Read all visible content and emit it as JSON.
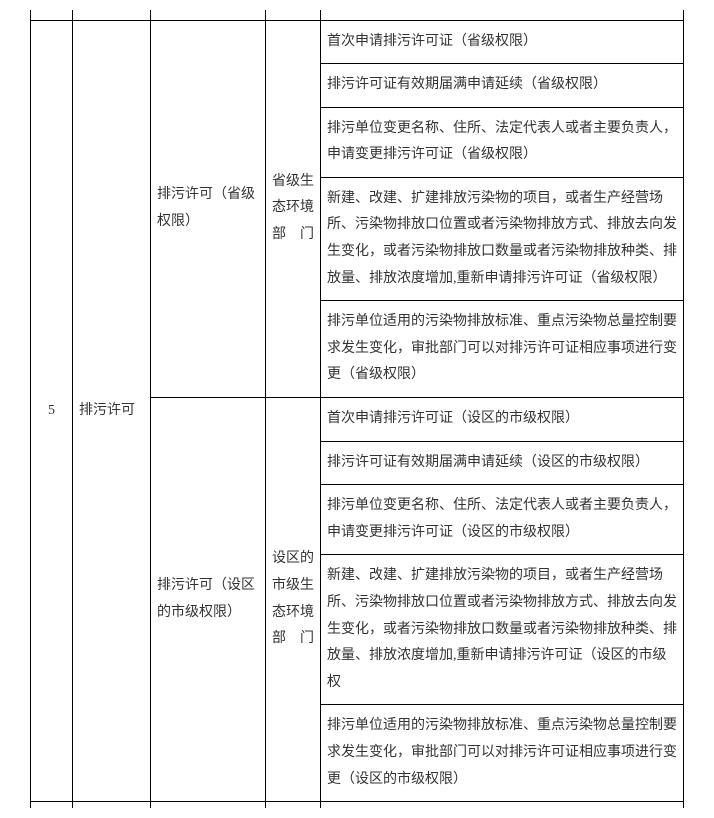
{
  "row_num": "5",
  "category": "排污许可",
  "group1": {
    "sub": "排污许可（省级权限）",
    "dept": "省级生态环境部门",
    "items": [
      "首次申请排污许可证（省级权限）",
      "排污许可证有效期届满申请延续（省级权限）",
      "排污单位变更名称、住所、法定代表人或者主要负责人，申请变更排污许可证（省级权限）",
      "新建、改建、扩建排放污染物的项目，或者生产经营场所、污染物排放口位置或者污染物排放方式、排放去向发生变化，或者污染物排放口数量或者污染物排放种类、排放量、排放浓度增加,重新申请排污许可证（省级权限）",
      "排污单位适用的污染物排放标准、重点污染物总量控制要求发生变化，审批部门可以对排污许可证相应事项进行变更（省级权限）"
    ]
  },
  "group2": {
    "sub": "排污许可（设区的市级权限）",
    "dept": "设区的市级生态环境部门",
    "items": [
      "首次申请排污许可证（设区的市级权限）",
      "排污许可证有效期届满申请延续（设区的市级权限）",
      "排污单位变更名称、住所、法定代表人或者主要负责人，申请变更排污许可证（设区的市级权限）",
      "新建、改建、扩建排放污染物的项目，或者生产经营场所、污染物排放口位置或者污染物排放方式、排放去向发生变化，或者污染物排放口数量或者污染物排放种类、排放量、排放浓度增加,重新申请排污许可证（设区的市级权",
      "排污单位适用的污染物排放标准、重点污染物总量控制要求发生变化，审批部门可以对排污许可证相应事项进行变更（设区的市级权限）"
    ]
  }
}
